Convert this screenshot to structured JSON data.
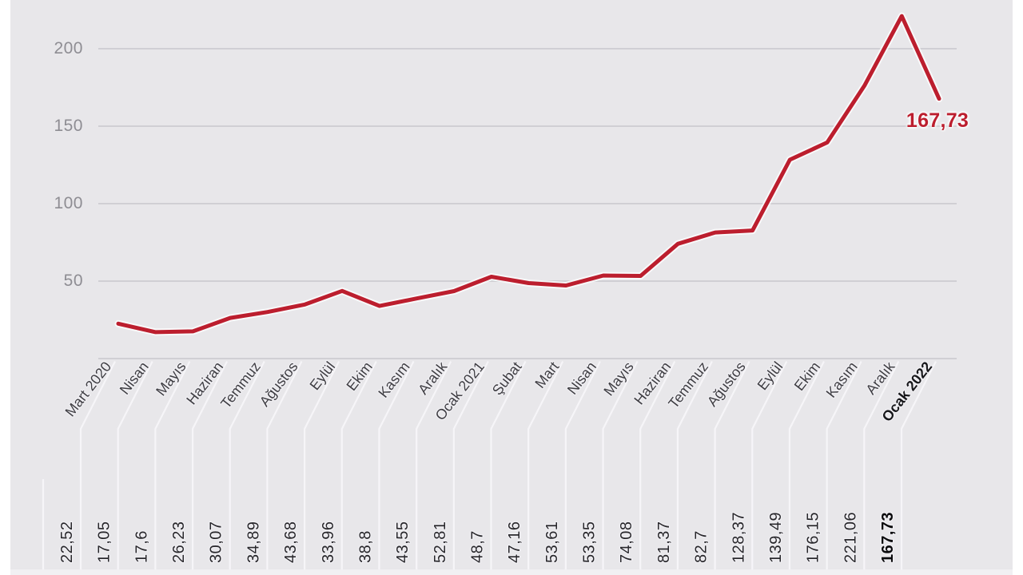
{
  "page": {
    "background_color": "#e8e7ea",
    "frame_color": "#ffffff",
    "footer_strip_color": "#f1f0f3"
  },
  "chart_data": {
    "type": "line",
    "categories": [
      "Mart 2020",
      "Nisan",
      "Mayıs",
      "Haziran",
      "Temmuz",
      "Ağustos",
      "Eylül",
      "Ekim",
      "Kasım",
      "Aralık",
      "Ocak 2021",
      "Şubat",
      "Mart",
      "Nisan",
      "Mayıs",
      "Haziran",
      "Temmuz",
      "Ağustos",
      "Eylül",
      "Ekim",
      "Kasım",
      "Aralık",
      "Ocak 2022"
    ],
    "values": [
      22.52,
      17.05,
      17.6,
      26.23,
      30.07,
      34.89,
      43.68,
      33.96,
      38.8,
      43.55,
      52.81,
      48.7,
      47.16,
      53.61,
      53.35,
      74.08,
      81.37,
      82.7,
      128.37,
      139.49,
      176.15,
      221.06,
      167.73
    ],
    "values_display": [
      "22,52",
      "17,05",
      "17,6",
      "26,23",
      "30,07",
      "34,89",
      "43,68",
      "33,96",
      "38,8",
      "43,55",
      "52,81",
      "48,7",
      "47,16",
      "53,61",
      "53,35",
      "74,08",
      "81,37",
      "82,7",
      "128,37",
      "139,49",
      "176,15",
      "221,06",
      "167,73"
    ],
    "y_ticks": [
      "200",
      "150",
      "100",
      "50"
    ],
    "y_gridlines": [
      0,
      50,
      100,
      150,
      200
    ],
    "ylim": [
      0,
      230
    ],
    "grid": true,
    "legend": "none",
    "emphasized_category": "Ocak 2022",
    "emphasized_value": "167,73",
    "annotation": {
      "text": "167,73"
    },
    "colors": {
      "line": "#bc1e2e",
      "line_halo": "#ffffff",
      "gridline": "#c8c7cc",
      "tick_label": "#8e8d93",
      "category_label": "#3f3e43",
      "category_label_emphasis": "#17171a",
      "value_label": "#29282c",
      "value_label_emphasis": "#0b0b0d",
      "leader_line": "#f6f5f8"
    }
  }
}
